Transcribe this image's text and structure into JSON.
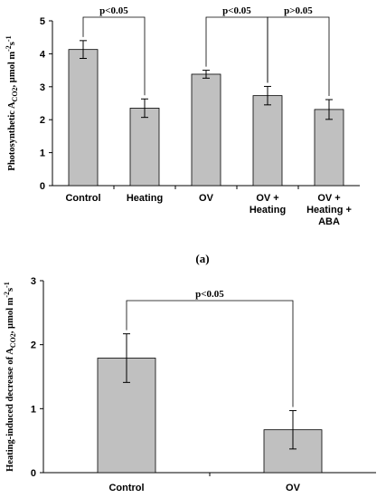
{
  "chart_data": [
    {
      "type": "bar",
      "ylabel_main": "Photosynthetic A",
      "ylabel_sub": "CO2",
      "ylabel_unit": ", µmol m",
      "ylabel_sup1": "-2",
      "ylabel_s": "s",
      "ylabel_sup2": "-1",
      "categories": [
        [
          "Control"
        ],
        [
          "Heating"
        ],
        [
          "OV"
        ],
        [
          "OV +",
          "Heating"
        ],
        [
          "OV +",
          "Heating +",
          "ABA"
        ]
      ],
      "values": [
        4.13,
        2.35,
        3.38,
        2.73,
        2.31
      ],
      "errors": [
        0.27,
        0.28,
        0.12,
        0.28,
        0.3
      ],
      "ylim": [
        0,
        5
      ],
      "yticks": [
        "0",
        "1",
        "2",
        "3",
        "4",
        "5"
      ],
      "bar_color": "#c0c0c0",
      "panel_label": "(a)",
      "comparisons": [
        {
          "from": 0,
          "to": 1,
          "label": "p<0.05"
        },
        {
          "from": 2,
          "to": 3,
          "label": "p<0.05"
        },
        {
          "from": 3,
          "to": 4,
          "label": "p>0.05"
        }
      ]
    },
    {
      "type": "bar",
      "ylabel_main": "Heating-induced decrease of A",
      "ylabel_sub": "CO2",
      "ylabel_unit": ", µmol m",
      "ylabel_sup1": "-2",
      "ylabel_s": "s",
      "ylabel_sup2": "-1",
      "categories": [
        [
          "Control"
        ],
        [
          "OV"
        ]
      ],
      "values": [
        1.79,
        0.67
      ],
      "errors": [
        0.38,
        0.3
      ],
      "ylim": [
        0,
        3
      ],
      "yticks": [
        "0",
        "1",
        "2",
        "3"
      ],
      "bar_color": "#c0c0c0",
      "comparisons": [
        {
          "from": 0,
          "to": 1,
          "label": "p<0.05"
        }
      ]
    }
  ]
}
